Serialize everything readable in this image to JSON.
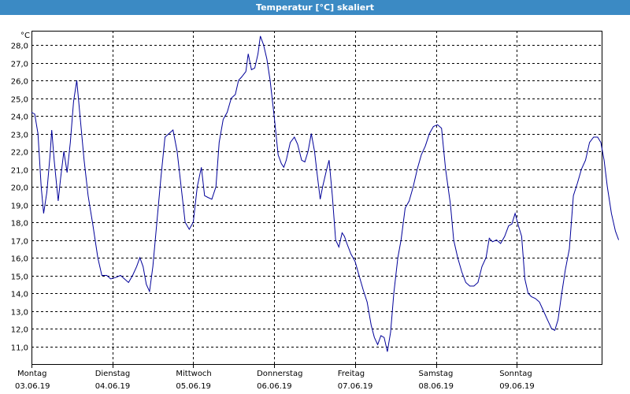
{
  "window": {
    "title": "Temperatur [°C] skaliert"
  },
  "chart_data": {
    "type": "line",
    "title": "Temperatur [°C] skaliert",
    "ylabel": "°C",
    "xlabel": "",
    "ylim": [
      10,
      28.8
    ],
    "xlim": [
      0,
      7
    ],
    "grid": true,
    "yticks": [
      "11,0",
      "12,0",
      "13,0",
      "14,0",
      "15,0",
      "16,0",
      "17,0",
      "18,0",
      "19,0",
      "20,0",
      "21,0",
      "22,0",
      "23,0",
      "24,0",
      "25,0",
      "26,0",
      "27,0",
      "28,0"
    ],
    "xticks": [
      {
        "day": "Montag",
        "date": "03.06.19"
      },
      {
        "day": "Dienstag",
        "date": "04.06.19"
      },
      {
        "day": "Mittwoch",
        "date": "05.06.19"
      },
      {
        "day": "Donnerstag",
        "date": "06.06.19"
      },
      {
        "day": "Freitag",
        "date": "07.06.19"
      },
      {
        "day": "Samstag",
        "date": "08.06.19"
      },
      {
        "day": "Sonntag",
        "date": "09.06.19"
      }
    ],
    "series": [
      {
        "color": "#000099",
        "points": [
          [
            0.0,
            24.2
          ],
          [
            0.04,
            24.1
          ],
          [
            0.08,
            23.0
          ],
          [
            0.12,
            20.0
          ],
          [
            0.15,
            18.5
          ],
          [
            0.19,
            19.7
          ],
          [
            0.23,
            21.8
          ],
          [
            0.25,
            23.2
          ],
          [
            0.28,
            21.5
          ],
          [
            0.33,
            19.2
          ],
          [
            0.36,
            20.5
          ],
          [
            0.4,
            22.0
          ],
          [
            0.44,
            20.8
          ],
          [
            0.48,
            22.5
          ],
          [
            0.52,
            24.8
          ],
          [
            0.56,
            26.0
          ],
          [
            0.6,
            24.0
          ],
          [
            0.65,
            21.5
          ],
          [
            0.7,
            19.5
          ],
          [
            0.76,
            17.8
          ],
          [
            0.82,
            16.0
          ],
          [
            0.87,
            15.0
          ],
          [
            0.93,
            15.0
          ],
          [
            0.98,
            14.8
          ],
          [
            1.05,
            14.9
          ],
          [
            1.1,
            15.0
          ],
          [
            1.15,
            14.8
          ],
          [
            1.2,
            14.6
          ],
          [
            1.25,
            15.0
          ],
          [
            1.3,
            15.5
          ],
          [
            1.34,
            16.0
          ],
          [
            1.38,
            15.5
          ],
          [
            1.42,
            14.5
          ],
          [
            1.46,
            14.1
          ],
          [
            1.5,
            15.5
          ],
          [
            1.55,
            18.0
          ],
          [
            1.6,
            20.5
          ],
          [
            1.65,
            22.8
          ],
          [
            1.7,
            23.0
          ],
          [
            1.75,
            23.2
          ],
          [
            1.8,
            22.0
          ],
          [
            1.85,
            20.0
          ],
          [
            1.9,
            18.0
          ],
          [
            1.95,
            17.6
          ],
          [
            2.0,
            18.0
          ],
          [
            2.05,
            20.0
          ],
          [
            2.1,
            21.1
          ],
          [
            2.14,
            19.5
          ],
          [
            2.18,
            19.4
          ],
          [
            2.23,
            19.3
          ],
          [
            2.28,
            20.0
          ],
          [
            2.32,
            22.5
          ],
          [
            2.37,
            23.8
          ],
          [
            2.42,
            24.2
          ],
          [
            2.47,
            25.0
          ],
          [
            2.52,
            25.2
          ],
          [
            2.56,
            26.0
          ],
          [
            2.6,
            26.2
          ],
          [
            2.65,
            26.5
          ],
          [
            2.68,
            27.5
          ],
          [
            2.72,
            26.6
          ],
          [
            2.76,
            26.7
          ],
          [
            2.8,
            27.5
          ],
          [
            2.83,
            28.5
          ],
          [
            2.87,
            28.0
          ],
          [
            2.91,
            27.2
          ],
          [
            2.95,
            26.0
          ],
          [
            3.0,
            24.0
          ],
          [
            3.05,
            21.8
          ],
          [
            3.09,
            21.3
          ],
          [
            3.12,
            21.1
          ],
          [
            3.15,
            21.5
          ],
          [
            3.2,
            22.5
          ],
          [
            3.25,
            22.8
          ],
          [
            3.29,
            22.4
          ],
          [
            3.34,
            21.5
          ],
          [
            3.38,
            21.4
          ],
          [
            3.42,
            22.0
          ],
          [
            3.46,
            23.0
          ],
          [
            3.5,
            22.0
          ],
          [
            3.53,
            20.8
          ],
          [
            3.57,
            19.3
          ],
          [
            3.6,
            20.0
          ],
          [
            3.65,
            21.0
          ],
          [
            3.68,
            21.5
          ],
          [
            3.72,
            19.5
          ],
          [
            3.76,
            17.0
          ],
          [
            3.8,
            16.6
          ],
          [
            3.84,
            17.4
          ],
          [
            3.87,
            17.2
          ],
          [
            3.9,
            16.8
          ],
          [
            3.95,
            16.2
          ],
          [
            4.0,
            15.8
          ],
          [
            4.05,
            15.0
          ],
          [
            4.1,
            14.2
          ],
          [
            4.15,
            13.5
          ],
          [
            4.2,
            12.2
          ],
          [
            4.24,
            11.5
          ],
          [
            4.28,
            11.1
          ],
          [
            4.32,
            11.6
          ],
          [
            4.36,
            11.5
          ],
          [
            4.4,
            10.7
          ],
          [
            4.44,
            11.8
          ],
          [
            4.48,
            14.0
          ],
          [
            4.53,
            16.0
          ],
          [
            4.57,
            17.0
          ],
          [
            4.62,
            18.8
          ],
          [
            4.67,
            19.2
          ],
          [
            4.72,
            20.0
          ],
          [
            4.77,
            21.0
          ],
          [
            4.82,
            21.8
          ],
          [
            4.87,
            22.3
          ],
          [
            4.92,
            23.0
          ],
          [
            4.97,
            23.4
          ],
          [
            5.02,
            23.5
          ],
          [
            5.07,
            23.3
          ],
          [
            5.12,
            21.0
          ],
          [
            5.18,
            19.0
          ],
          [
            5.22,
            17.0
          ],
          [
            5.27,
            16.0
          ],
          [
            5.32,
            15.2
          ],
          [
            5.37,
            14.6
          ],
          [
            5.42,
            14.4
          ],
          [
            5.47,
            14.4
          ],
          [
            5.52,
            14.6
          ],
          [
            5.57,
            15.5
          ],
          [
            5.62,
            16.0
          ],
          [
            5.66,
            17.1
          ],
          [
            5.7,
            16.9
          ],
          [
            5.75,
            17.0
          ],
          [
            5.8,
            16.8
          ],
          [
            5.85,
            17.2
          ],
          [
            5.9,
            17.8
          ],
          [
            5.94,
            17.9
          ],
          [
            5.98,
            18.5
          ],
          [
            6.02,
            17.8
          ],
          [
            6.06,
            17.2
          ],
          [
            6.1,
            14.8
          ],
          [
            6.14,
            14.0
          ],
          [
            6.18,
            13.8
          ],
          [
            6.23,
            13.7
          ],
          [
            6.28,
            13.5
          ],
          [
            6.33,
            13.0
          ],
          [
            6.38,
            12.5
          ],
          [
            6.43,
            12.0
          ],
          [
            6.47,
            11.9
          ],
          [
            6.51,
            12.5
          ],
          [
            6.55,
            13.8
          ],
          [
            6.6,
            15.3
          ],
          [
            6.65,
            16.5
          ],
          [
            6.7,
            19.5
          ],
          [
            6.75,
            20.2
          ],
          [
            6.8,
            21.0
          ],
          [
            6.85,
            21.5
          ],
          [
            6.9,
            22.5
          ],
          [
            6.95,
            22.8
          ],
          [
            7.0,
            22.8
          ],
          [
            7.04,
            22.5
          ],
          [
            7.08,
            21.5
          ],
          [
            7.12,
            20.0
          ],
          [
            7.17,
            18.5
          ],
          [
            7.22,
            17.5
          ],
          [
            7.26,
            17.0
          ]
        ]
      }
    ]
  }
}
